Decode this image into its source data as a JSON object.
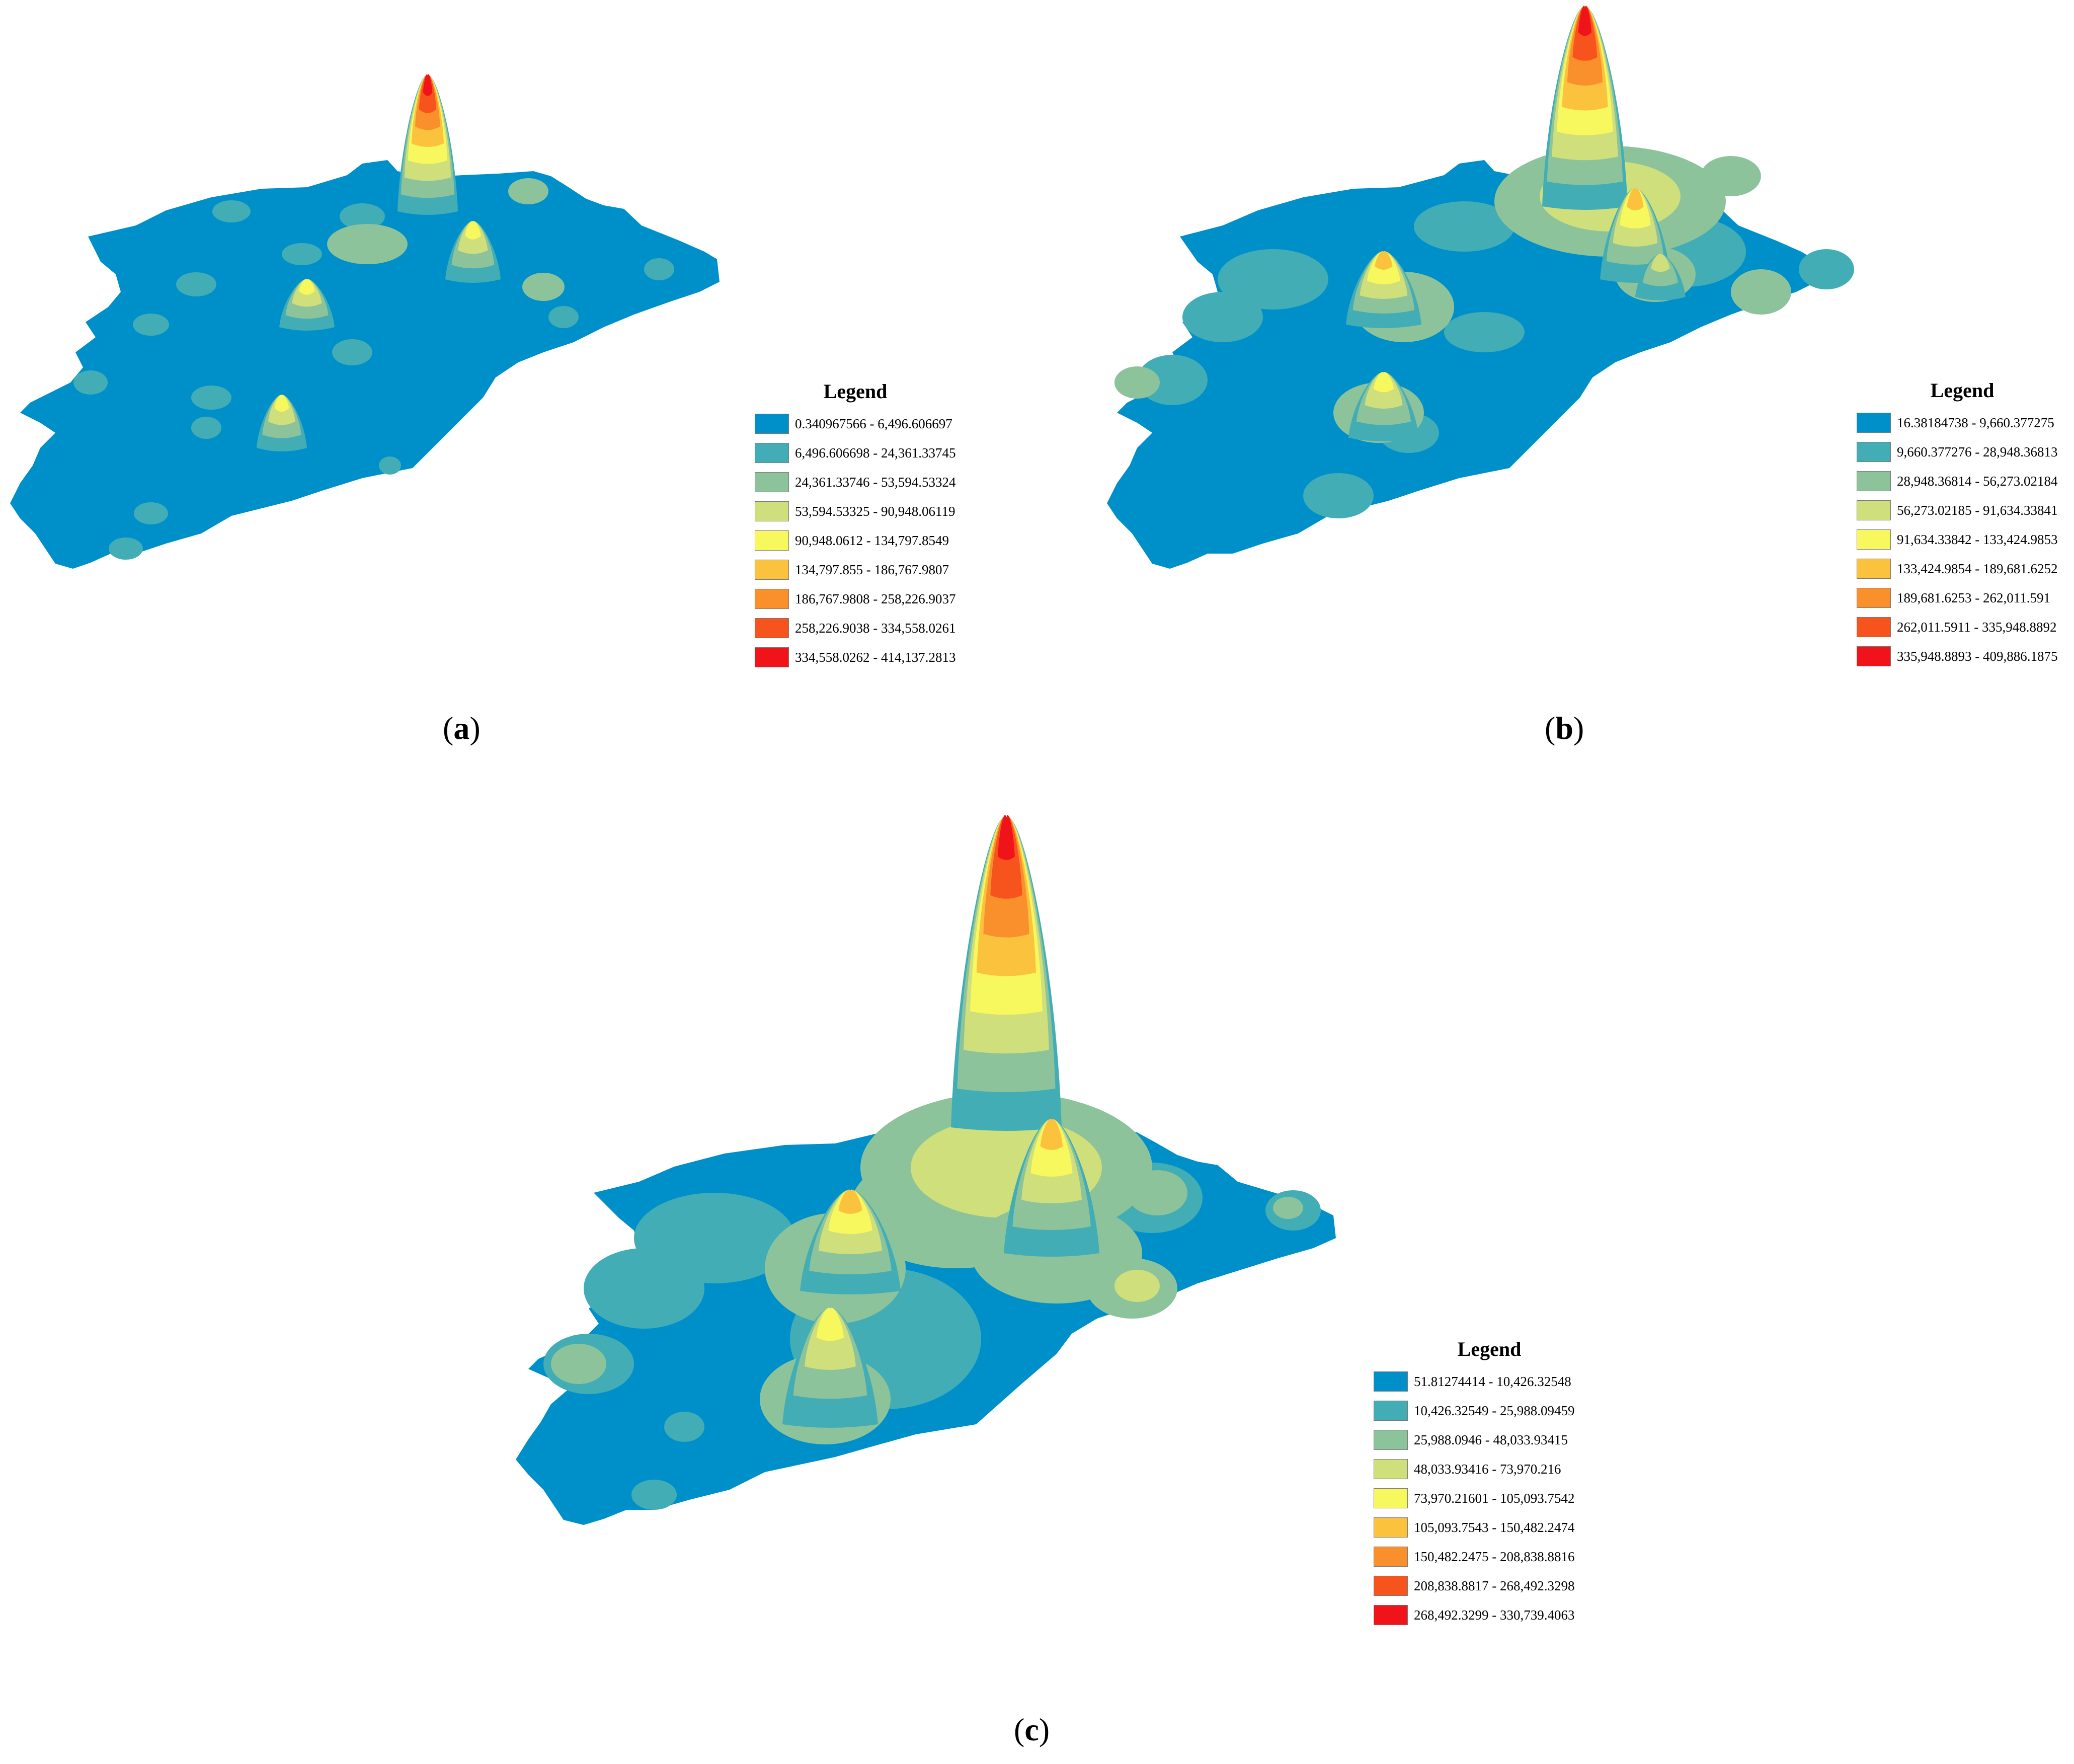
{
  "palette": {
    "class_colors": [
      "#0090c9",
      "#43adb6",
      "#8dc39b",
      "#cedf7b",
      "#f7f75e",
      "#fbc23e",
      "#f9902c",
      "#f6541c",
      "#f0141a"
    ],
    "background": "#ffffff"
  },
  "panels": [
    {
      "id": "a",
      "caption": "a",
      "legend": {
        "title": "Legend",
        "classes": [
          "0.340967566 - 6,496.606697",
          "6,496.606698 - 24,361.33745",
          "24,361.33746 - 53,594.53324",
          "53,594.53325 - 90,948.06119",
          "90,948.0612 - 134,797.8549",
          "134,797.855 - 186,767.9807",
          "186,767.9808 - 258,226.9037",
          "258,226.9038 - 334,558.0261",
          "334,558.0262 - 414,137.2813"
        ]
      },
      "peaks": [
        {
          "name": "main-peak",
          "level": 8
        },
        {
          "name": "east-peak",
          "level": 4
        },
        {
          "name": "west-peak",
          "level": 4
        },
        {
          "name": "south-peak",
          "level": 4
        }
      ]
    },
    {
      "id": "b",
      "caption": "b",
      "legend": {
        "title": "Legend",
        "classes": [
          "16.38184738 - 9,660.377275",
          "9,660.377276 - 28,948.36813",
          "28,948.36814 - 56,273.02184",
          "56,273.02185 - 91,634.33841",
          "91,634.33842 - 133,424.9853",
          "133,424.9854 - 189,681.6252",
          "189,681.6253 - 262,011.591",
          "262,011.5911 - 335,948.8892",
          "335,948.8893 - 409,886.1875"
        ]
      },
      "peaks": [
        {
          "name": "main-peak",
          "level": 8
        },
        {
          "name": "east-peak",
          "level": 5
        },
        {
          "name": "west-peak",
          "level": 5
        },
        {
          "name": "south-peak",
          "level": 4
        },
        {
          "name": "far-east-peak",
          "level": 3
        }
      ]
    },
    {
      "id": "c",
      "caption": "c",
      "legend": {
        "title": "Legend",
        "classes": [
          "51.81274414 - 10,426.32548",
          "10,426.32549 - 25,988.09459",
          "25,988.0946 - 48,033.93415",
          "48,033.93416 - 73,970.216",
          "73,970.21601 - 105,093.7542",
          "105,093.7543 - 150,482.2474",
          "150,482.2475 - 208,838.8816",
          "208,838.8817 - 268,492.3298",
          "268,492.3299 - 330,739.4063"
        ]
      },
      "peaks": [
        {
          "name": "main-peak",
          "level": 8
        },
        {
          "name": "east-peak",
          "level": 5
        },
        {
          "name": "west-peak",
          "level": 5
        },
        {
          "name": "south-peak",
          "level": 4
        },
        {
          "name": "far-east-peak",
          "level": 3
        }
      ]
    }
  ]
}
